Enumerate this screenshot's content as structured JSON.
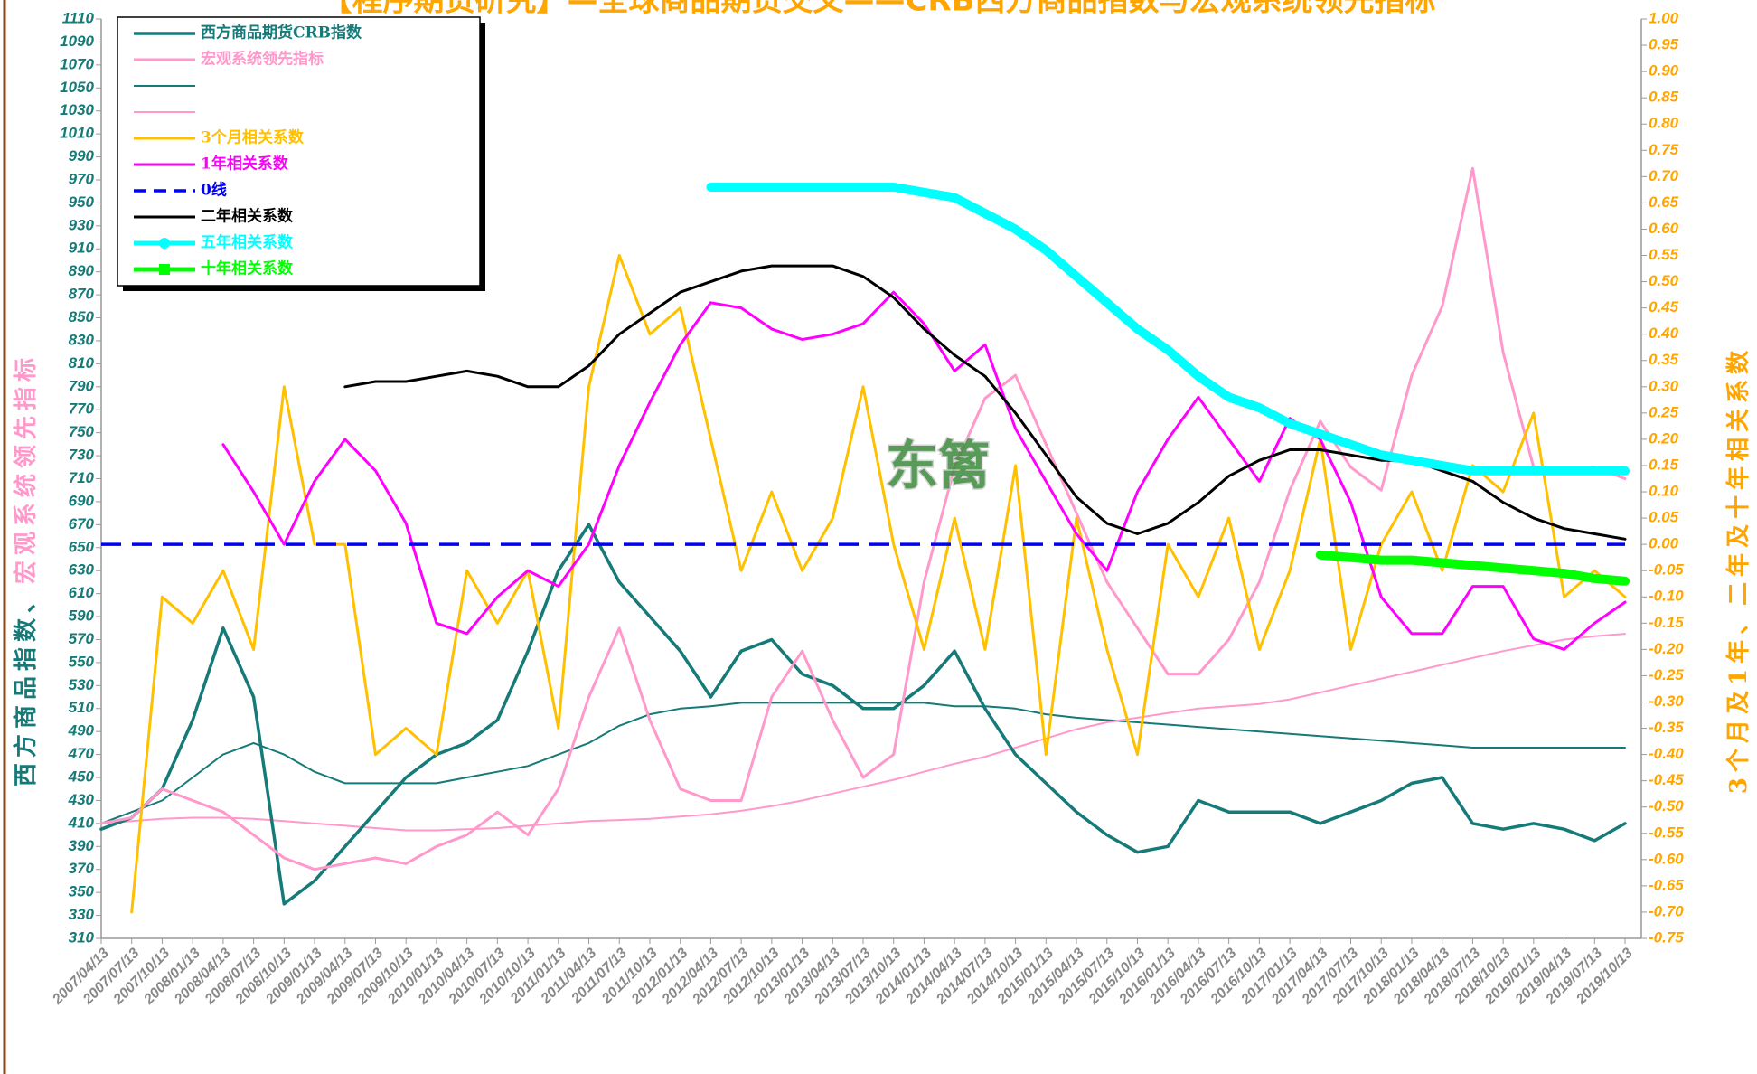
{
  "chart_data": {
    "type": "line",
    "title": "【程序期货研究】—全球商品期货交叉——CRB西方商品指数与宏观系统领先指标",
    "ylabel": [
      "西方商品指数、",
      "宏观系统领先指标"
    ],
    "y2label": "3个月及1年、二年及十年相关系数",
    "watermark": "东篱",
    "x": [
      "2007/04/13",
      "2007/07/13",
      "2007/10/13",
      "2008/01/13",
      "2008/04/13",
      "2008/07/13",
      "2008/10/13",
      "2009/01/13",
      "2009/04/13",
      "2009/07/13",
      "2009/10/13",
      "2010/01/13",
      "2010/04/13",
      "2010/07/13",
      "2010/10/13",
      "2011/01/13",
      "2011/04/13",
      "2011/07/13",
      "2011/10/13",
      "2012/01/13",
      "2012/04/13",
      "2012/07/13",
      "2012/10/13",
      "2013/01/13",
      "2013/04/13",
      "2013/07/13",
      "2013/10/13",
      "2014/01/13",
      "2014/04/13",
      "2014/07/13",
      "2014/10/13",
      "2015/01/13",
      "2015/04/13",
      "2015/07/13",
      "2015/10/13",
      "2016/01/13",
      "2016/04/13",
      "2016/07/13",
      "2016/10/13",
      "2017/01/13",
      "2017/04/13",
      "2017/07/13",
      "2017/10/13",
      "2018/01/13",
      "2018/04/13",
      "2018/07/13",
      "2018/10/13",
      "2019/01/13",
      "2019/04/13",
      "2019/07/13",
      "2019/10/13"
    ],
    "ylim": [
      310,
      1110
    ],
    "yticks": [
      310,
      330,
      350,
      370,
      390,
      410,
      430,
      450,
      470,
      490,
      510,
      530,
      550,
      570,
      590,
      610,
      630,
      650,
      670,
      690,
      710,
      730,
      750,
      770,
      790,
      810,
      830,
      850,
      870,
      890,
      910,
      930,
      950,
      970,
      990,
      1010,
      1030,
      1050,
      1070,
      1090,
      1110
    ],
    "y2lim": [
      -0.75,
      1.0
    ],
    "y2ticks": [
      {
        "value": 1.0,
        "label": "1.00"
      },
      0.95,
      {
        "value": 0.9,
        "label": "0.90"
      },
      0.85,
      {
        "value": 0.8,
        "label": "0.80"
      },
      0.75,
      {
        "value": 0.7,
        "label": "0.70"
      },
      0.65,
      {
        "value": 0.6,
        "label": "0.60"
      },
      0.55,
      {
        "value": 0.5,
        "label": "0.50"
      },
      0.45,
      {
        "value": 0.4,
        "label": "0.40"
      },
      0.35,
      {
        "value": 0.3,
        "label": "0.30"
      },
      0.25,
      {
        "value": 0.2,
        "label": "0.20"
      },
      0.15,
      {
        "value": 0.1,
        "label": "0.10"
      },
      0.05,
      {
        "value": 0,
        "label": "0.00"
      },
      -0.05,
      {
        "value": -0.1,
        "label": "-0.10"
      },
      -0.15,
      {
        "value": -0.2,
        "label": "-0.20"
      },
      -0.25,
      {
        "value": -0.3,
        "label": "-0.30"
      },
      -0.35,
      {
        "value": -0.4,
        "label": "-0.40"
      },
      -0.45,
      {
        "value": -0.5,
        "label": "-0.50"
      },
      -0.55,
      {
        "value": -0.6,
        "label": "-0.60"
      },
      -0.65,
      {
        "value": -0.7,
        "label": "-0.70"
      },
      -0.75
    ],
    "legend": "upper left",
    "series": [
      {
        "name": "西方商品期货CRB指数",
        "color": "#157a78",
        "width": 3.5,
        "values": [
          405,
          415,
          440,
          500,
          580,
          520,
          340,
          360,
          390,
          420,
          450,
          470,
          480,
          500,
          560,
          630,
          670,
          620,
          590,
          560,
          520,
          560,
          570,
          540,
          530,
          510,
          510,
          530,
          560,
          510,
          470,
          445,
          420,
          400,
          385,
          390,
          430,
          420,
          420,
          420,
          410,
          420,
          430,
          445,
          450,
          410,
          405,
          410,
          405,
          395,
          410
        ]
      },
      {
        "name": "宏观系统领先指标",
        "color": "#ff99cc",
        "width": 3,
        "values": [
          410,
          415,
          440,
          430,
          420,
          400,
          380,
          370,
          375,
          380,
          375,
          390,
          400,
          420,
          400,
          440,
          520,
          580,
          500,
          440,
          430,
          430,
          520,
          560,
          500,
          450,
          470,
          620,
          720,
          780,
          800,
          740,
          680,
          620,
          580,
          540,
          540,
          570,
          620,
          700,
          760,
          720,
          700,
          800,
          860,
          980,
          820,
          720,
          720,
          720,
          710
        ]
      },
      {
        "color": "#157a78",
        "width": 2,
        "values": [
          410,
          420,
          430,
          450,
          470,
          480,
          470,
          455,
          445,
          445,
          445,
          445,
          450,
          455,
          460,
          470,
          480,
          495,
          505,
          510,
          512,
          515,
          515,
          515,
          515,
          515,
          515,
          515,
          512,
          512,
          510,
          505,
          502,
          500,
          498,
          496,
          494,
          492,
          490,
          488,
          486,
          484,
          482,
          480,
          478,
          476,
          476,
          476,
          476,
          476,
          476
        ]
      },
      {
        "color": "#ff99cc",
        "width": 2,
        "values": [
          410,
          412,
          414,
          415,
          415,
          414,
          412,
          410,
          408,
          406,
          404,
          404,
          405,
          406,
          408,
          410,
          412,
          413,
          414,
          416,
          418,
          421,
          425,
          430,
          436,
          442,
          448,
          455,
          462,
          468,
          476,
          484,
          492,
          498,
          502,
          506,
          510,
          512,
          514,
          518,
          524,
          530,
          536,
          542,
          548,
          554,
          560,
          565,
          570,
          573,
          575
        ]
      },
      {
        "name": "3个月相关系数",
        "color": "#ffc000",
        "width": 3,
        "axis": "y2",
        "values": [
          null,
          -0.7,
          -0.1,
          -0.15,
          -0.05,
          -0.2,
          0.3,
          0.0,
          0.0,
          -0.4,
          -0.35,
          -0.4,
          -0.05,
          -0.15,
          -0.05,
          -0.35,
          0.3,
          0.55,
          0.4,
          0.45,
          0.2,
          -0.05,
          0.1,
          -0.05,
          0.05,
          0.3,
          0.0,
          -0.2,
          0.05,
          -0.2,
          0.15,
          -0.4,
          0.05,
          -0.2,
          -0.4,
          0.0,
          -0.1,
          0.05,
          -0.2,
          -0.05,
          0.2,
          -0.2,
          0.0,
          0.1,
          -0.05,
          0.15,
          0.1,
          0.25,
          -0.1,
          -0.05,
          -0.1
        ]
      },
      {
        "name": "1年相关系数",
        "color": "#ff00ff",
        "width": 3,
        "axis": "y2",
        "values": [
          null,
          null,
          null,
          null,
          0.19,
          0.1,
          0.0,
          0.12,
          0.2,
          0.14,
          0.04,
          -0.15,
          -0.17,
          -0.1,
          -0.05,
          -0.08,
          0.0,
          0.15,
          0.27,
          0.38,
          0.46,
          0.45,
          0.41,
          0.39,
          0.4,
          0.42,
          0.48,
          0.42,
          0.33,
          0.38,
          0.22,
          0.12,
          0.02,
          -0.05,
          0.1,
          0.2,
          0.28,
          0.2,
          0.12,
          0.24,
          0.2,
          0.08,
          -0.1,
          -0.17,
          -0.17,
          -0.08,
          -0.08,
          -0.18,
          -0.2,
          -0.15,
          -0.11
        ]
      },
      {
        "name": "0线",
        "color": "#0000ff",
        "width": 3.5,
        "dash": true,
        "axis": "y2",
        "values": [
          0,
          0,
          0,
          0,
          0,
          0,
          0,
          0,
          0,
          0,
          0,
          0,
          0,
          0,
          0,
          0,
          0,
          0,
          0,
          0,
          0,
          0,
          0,
          0,
          0,
          0,
          0,
          0,
          0,
          0,
          0,
          0,
          0,
          0,
          0,
          0,
          0,
          0,
          0,
          0,
          0,
          0,
          0,
          0,
          0,
          0,
          0,
          0,
          0,
          0,
          0
        ]
      },
      {
        "name": "二年相关系数",
        "color": "#000000",
        "width": 3,
        "axis": "y2",
        "values": [
          null,
          null,
          null,
          null,
          null,
          null,
          null,
          null,
          0.3,
          0.31,
          0.31,
          0.32,
          0.33,
          0.32,
          0.3,
          0.3,
          0.34,
          0.4,
          0.44,
          0.48,
          0.5,
          0.52,
          0.53,
          0.53,
          0.53,
          0.51,
          0.47,
          0.41,
          0.36,
          0.32,
          0.25,
          0.17,
          0.09,
          0.04,
          0.02,
          0.04,
          0.08,
          0.13,
          0.16,
          0.18,
          0.18,
          0.17,
          0.16,
          0.16,
          0.14,
          0.12,
          0.08,
          0.05,
          0.03,
          0.02,
          0.01
        ]
      },
      {
        "name": "五年相关系数",
        "color": "#00ffff",
        "width": 10,
        "axis": "y2",
        "marker": "circle",
        "values": [
          null,
          null,
          null,
          null,
          null,
          null,
          null,
          null,
          null,
          null,
          null,
          null,
          null,
          null,
          null,
          null,
          null,
          null,
          null,
          null,
          0.68,
          0.68,
          0.68,
          0.68,
          0.68,
          0.68,
          0.68,
          0.67,
          0.66,
          0.63,
          0.6,
          0.56,
          0.51,
          0.46,
          0.41,
          0.37,
          0.32,
          0.28,
          0.26,
          0.23,
          0.21,
          0.19,
          0.17,
          0.16,
          0.15,
          0.14,
          0.14,
          0.14,
          0.14,
          0.14,
          0.14
        ]
      },
      {
        "name": "十年相关系数",
        "color": "#00ff00",
        "width": 10,
        "axis": "y2",
        "marker": "square",
        "values": [
          null,
          null,
          null,
          null,
          null,
          null,
          null,
          null,
          null,
          null,
          null,
          null,
          null,
          null,
          null,
          null,
          null,
          null,
          null,
          null,
          null,
          null,
          null,
          null,
          null,
          null,
          null,
          null,
          null,
          null,
          null,
          null,
          null,
          null,
          null,
          null,
          null,
          null,
          null,
          null,
          -0.02,
          -0.025,
          -0.03,
          -0.03,
          -0.035,
          -0.04,
          -0.045,
          -0.05,
          -0.055,
          -0.065,
          -0.07
        ]
      }
    ]
  }
}
